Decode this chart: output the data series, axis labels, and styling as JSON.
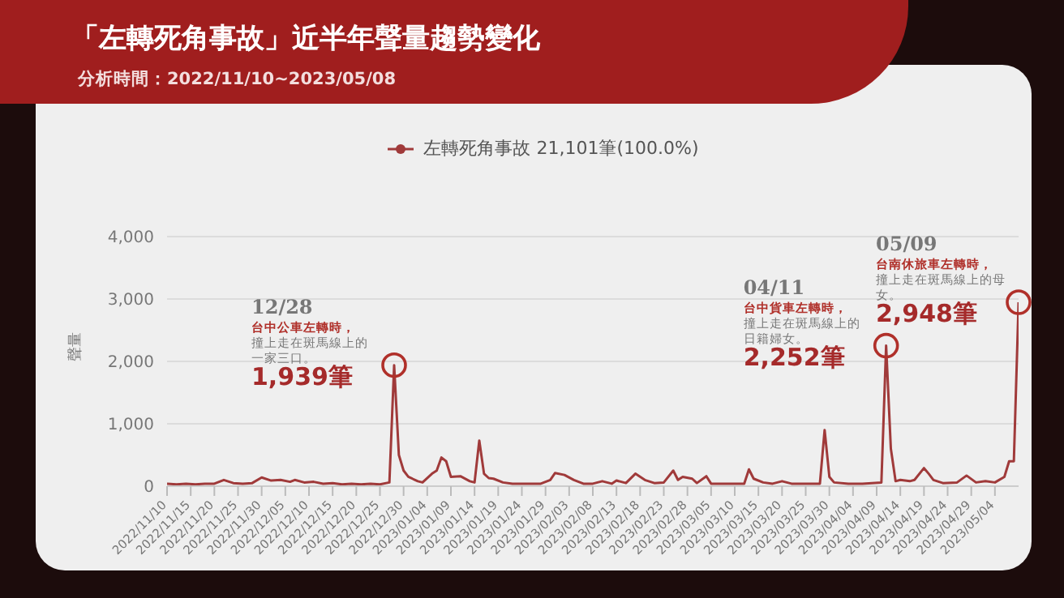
{
  "chart_data": {
    "type": "line",
    "title": "「左轉死角事故」近半年聲量趨勢變化",
    "subtitle": "分析時間：2022/11/10~2023/05/08",
    "ylabel": "聲量",
    "x": [
      "2022-11-10",
      "2022-11-12",
      "2022-11-14",
      "2022-11-16",
      "2022-11-18",
      "2022-11-20",
      "2022-11-22",
      "2022-11-24",
      "2022-11-26",
      "2022-11-28",
      "2022-11-30",
      "2022-12-02",
      "2022-12-04",
      "2022-12-06",
      "2022-12-07",
      "2022-12-09",
      "2022-12-11",
      "2022-12-13",
      "2022-12-15",
      "2022-12-17",
      "2022-12-19",
      "2022-12-21",
      "2022-12-23",
      "2022-12-25",
      "2022-12-27",
      "2022-12-28",
      "2022-12-29",
      "2022-12-30",
      "2022-12-31",
      "2023-01-02",
      "2023-01-03",
      "2023-01-05",
      "2023-01-06",
      "2023-01-07",
      "2023-01-08",
      "2023-01-09",
      "2023-01-11",
      "2023-01-13",
      "2023-01-14",
      "2023-01-15",
      "2023-01-16",
      "2023-01-17",
      "2023-01-18",
      "2023-01-20",
      "2023-01-22",
      "2023-01-25",
      "2023-01-28",
      "2023-01-30",
      "2023-01-31",
      "2023-02-02",
      "2023-02-04",
      "2023-02-06",
      "2023-02-08",
      "2023-02-10",
      "2023-02-12",
      "2023-02-13",
      "2023-02-15",
      "2023-02-17",
      "2023-02-19",
      "2023-02-21",
      "2023-02-23",
      "2023-02-25",
      "2023-02-26",
      "2023-02-27",
      "2023-03-01",
      "2023-03-02",
      "2023-03-04",
      "2023-03-05",
      "2023-03-08",
      "2023-03-12",
      "2023-03-13",
      "2023-03-14",
      "2023-03-16",
      "2023-03-18",
      "2023-03-20",
      "2023-03-22",
      "2023-03-25",
      "2023-03-28",
      "2023-03-29",
      "2023-03-30",
      "2023-03-31",
      "2023-04-03",
      "2023-04-06",
      "2023-04-10",
      "2023-04-11",
      "2023-04-12",
      "2023-04-13",
      "2023-04-14",
      "2023-04-16",
      "2023-04-17",
      "2023-04-19",
      "2023-04-20",
      "2023-04-21",
      "2023-04-23",
      "2023-04-26",
      "2023-04-28",
      "2023-04-30",
      "2023-05-02",
      "2023-05-04",
      "2023-05-06",
      "2023-05-07",
      "2023-05-08",
      "2023-05-09"
    ],
    "series": [
      {
        "name": "左轉死角事故 21,101筆(100.0%)",
        "color": "#a03a3a",
        "values": [
          40,
          30,
          40,
          30,
          40,
          40,
          100,
          50,
          40,
          50,
          140,
          90,
          100,
          70,
          100,
          60,
          70,
          40,
          50,
          30,
          40,
          30,
          40,
          30,
          60,
          1939,
          500,
          250,
          150,
          80,
          60,
          200,
          250,
          460,
          400,
          150,
          160,
          80,
          60,
          730,
          200,
          130,
          120,
          60,
          40,
          40,
          40,
          100,
          210,
          180,
          100,
          40,
          40,
          80,
          40,
          90,
          50,
          200,
          100,
          50,
          60,
          250,
          100,
          150,
          120,
          50,
          160,
          40,
          40,
          40,
          270,
          120,
          60,
          40,
          80,
          40,
          40,
          40,
          900,
          150,
          60,
          40,
          40,
          60,
          2252,
          600,
          80,
          100,
          80,
          100,
          290,
          200,
          100,
          50,
          60,
          170,
          60,
          80,
          60,
          150,
          400,
          400,
          2948
        ]
      }
    ],
    "xlim": [
      "2022-11-10",
      "2023-05-09"
    ],
    "xticks": [
      {
        "value": "2022-11-10",
        "label": "2022/11/10"
      },
      {
        "value": "2022-11-15",
        "label": "2022/11/15"
      },
      {
        "value": "2022-11-20",
        "label": "2022/11/20"
      },
      {
        "value": "2022-11-25",
        "label": "2022/11/25"
      },
      {
        "value": "2022-11-30",
        "label": "2022/11/30"
      },
      {
        "value": "2022-12-05",
        "label": "2022/12/05"
      },
      {
        "value": "2022-12-10",
        "label": "2022/12/10"
      },
      {
        "value": "2022-12-15",
        "label": "2022/12/15"
      },
      {
        "value": "2022-12-20",
        "label": "2022/12/20"
      },
      {
        "value": "2022-12-25",
        "label": "2022/12/25"
      },
      {
        "value": "2022-12-30",
        "label": "2022/12/30"
      },
      {
        "value": "2023-01-04",
        "label": "2023/01/04"
      },
      {
        "value": "2023-01-09",
        "label": "2023/01/09"
      },
      {
        "value": "2023-01-14",
        "label": "2023/01/14"
      },
      {
        "value": "2023-01-19",
        "label": "2023/01/19"
      },
      {
        "value": "2023-01-24",
        "label": "2023/01/24"
      },
      {
        "value": "2023-01-29",
        "label": "2023/01/29"
      },
      {
        "value": "2023-02-03",
        "label": "2023/02/03"
      },
      {
        "value": "2023-02-08",
        "label": "2023/02/08"
      },
      {
        "value": "2023-02-13",
        "label": "2023/02/13"
      },
      {
        "value": "2023-02-18",
        "label": "2023/02/18"
      },
      {
        "value": "2023-02-23",
        "label": "2023/02/23"
      },
      {
        "value": "2023-02-28",
        "label": "2023/02/28"
      },
      {
        "value": "2023-03-05",
        "label": "2023/03/05"
      },
      {
        "value": "2023-03-10",
        "label": "2023/03/10"
      },
      {
        "value": "2023-03-15",
        "label": "2023/03/15"
      },
      {
        "value": "2023-03-20",
        "label": "2023/03/20"
      },
      {
        "value": "2023-03-25",
        "label": "2023/03/25"
      },
      {
        "value": "2023-03-30",
        "label": "2023/03/30"
      },
      {
        "value": "2023-04-04",
        "label": "2023/04/04"
      },
      {
        "value": "2023-04-09",
        "label": "2023/04/09"
      },
      {
        "value": "2023-04-14",
        "label": "2023/04/14"
      },
      {
        "value": "2023-04-19",
        "label": "2023/04/19"
      },
      {
        "value": "2023-04-24",
        "label": "2023/04/24"
      },
      {
        "value": "2023-04-29",
        "label": "2023/04/29"
      },
      {
        "value": "2023-05-04",
        "label": "2023/05/04"
      }
    ],
    "ylim": [
      0,
      4000
    ],
    "yticks": [
      0,
      {
        "value": 1000,
        "label": "1,000"
      },
      {
        "value": 2000,
        "label": "2,000"
      },
      {
        "value": 3000,
        "label": "3,000"
      },
      {
        "value": 4000,
        "label": "4,000"
      }
    ],
    "grid": "y",
    "legend": "top",
    "marker": "none",
    "line_style": "solid",
    "annotations": [
      {
        "text": "12/28\n台中公車左轉時，撞上走在斑馬線上的一家三口。\n1,939筆",
        "x": "2022-12-28",
        "y": 1939
      },
      {
        "text": "04/11\n台中貨車左轉時，撞上走在斑馬線上的日籍婦女。\n2,252筆",
        "x": "2023-04-11",
        "y": 2252
      },
      {
        "text": "05/09\n台南休旅車左轉時，撞上走在斑馬線上的母女。\n2,948筆",
        "x": "2023-05-09",
        "y": 2948
      }
    ]
  }
}
